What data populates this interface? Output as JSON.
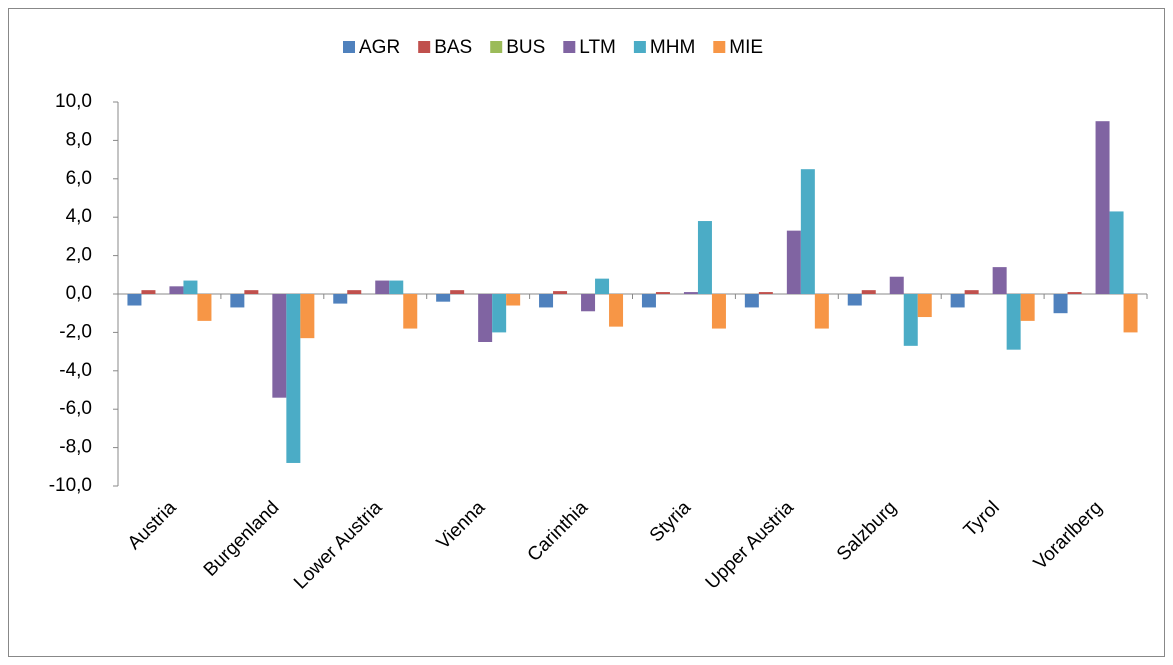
{
  "chart_data": {
    "type": "bar",
    "categories": [
      "Austria",
      "Burgenland",
      "Lower Austria",
      "Vienna",
      "Carinthia",
      "Styria",
      "Upper Austria",
      "Salzburg",
      "Tyrol",
      "Vorarlberg"
    ],
    "series": [
      {
        "name": "AGR",
        "color": "#4f81bd",
        "values": [
          -0.6,
          -0.7,
          -0.5,
          -0.4,
          -0.7,
          -0.7,
          -0.7,
          -0.6,
          -0.7,
          -1.0
        ]
      },
      {
        "name": "BAS",
        "color": "#c0504d",
        "values": [
          0.2,
          0.2,
          0.2,
          0.2,
          0.15,
          0.1,
          0.1,
          0.2,
          0.2,
          0.1
        ]
      },
      {
        "name": "BUS",
        "color": "#9bbb59",
        "values": [
          0,
          0,
          0,
          0,
          0,
          0,
          0,
          0,
          0,
          0
        ]
      },
      {
        "name": "LTM",
        "color": "#8064a2",
        "values": [
          0.4,
          -5.4,
          0.7,
          -2.5,
          -0.9,
          0.1,
          3.3,
          0.9,
          1.4,
          9.0
        ]
      },
      {
        "name": "MHM",
        "color": "#4bacc6",
        "values": [
          0.7,
          -8.8,
          0.7,
          -2.0,
          0.8,
          3.8,
          6.5,
          -2.7,
          -2.9,
          4.3
        ]
      },
      {
        "name": "MIE",
        "color": "#f79646",
        "values": [
          -1.4,
          -2.3,
          -1.8,
          -0.6,
          -1.7,
          -1.8,
          -1.8,
          -1.2,
          -1.4,
          -2.0
        ]
      }
    ],
    "ylim": [
      -10,
      10
    ],
    "yticks": [
      {
        "value": -10,
        "label": "-10,0"
      },
      {
        "value": -8,
        "label": "-8,0"
      },
      {
        "value": -6,
        "label": "-6,0"
      },
      {
        "value": -4,
        "label": "-4,0"
      },
      {
        "value": -2,
        "label": "-2,0"
      },
      {
        "value": 0,
        "label": "0,0"
      },
      {
        "value": 2,
        "label": "2,0"
      },
      {
        "value": 4,
        "label": "4,0"
      },
      {
        "value": 6,
        "label": "6,0"
      },
      {
        "value": 8,
        "label": "8,0"
      },
      {
        "value": 10,
        "label": "10,0"
      }
    ],
    "grid": true,
    "legend": "top"
  }
}
